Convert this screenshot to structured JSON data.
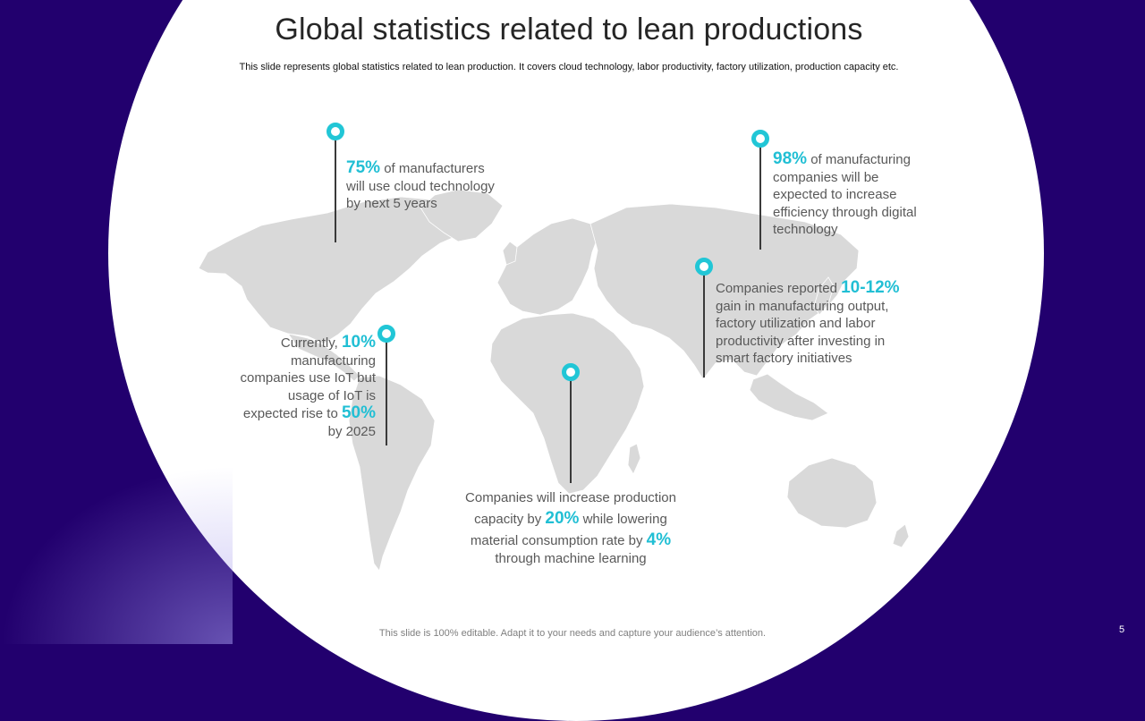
{
  "title": "Global statistics related to lean productions",
  "subtitle": "This slide represents global statistics related to lean production. It covers cloud technology, labor productivity, factory utilization, production capacity etc.",
  "callouts": {
    "cloud": {
      "highlight": "75%",
      "line1": " of manufacturers",
      "line2": "will use cloud technology",
      "line3": "by next  5 years"
    },
    "iot": {
      "line1a": "Currently, ",
      "highlight1": "10%",
      "line2": "manufacturing",
      "line3": "companies use IoT but",
      "line4": "usage of IoT is",
      "line5a": "expected rise to ",
      "highlight2": "50%",
      "line6": "by 2025"
    },
    "digital": {
      "highlight": "98%",
      "line1": "  of manufacturing",
      "line2": "companies  will be",
      "line3": "expected to increase",
      "line4": "efficiency through digital",
      "line5": "technology"
    },
    "smart": {
      "line1a": "Companies reported ",
      "highlight": "10-12%",
      "line2": "gain in manufacturing  output,",
      "line3": "factory utilization and labor",
      "line4": "productivity after investing in",
      "line5": "smart factory initiatives"
    },
    "capacity": {
      "line1": "Companies will increase production",
      "line2a": "capacity by ",
      "highlight1": "20%",
      "line2b": " while lowering",
      "line3a": "material consumption rate by ",
      "highlight2": "4%",
      "line4": "through machine learning"
    }
  },
  "footer": "This slide is 100% editable. Adapt it to your needs and capture your audience’s attention.",
  "page_number": "5",
  "colors": {
    "background": "#22006e",
    "accent": "#21c6d6",
    "map": "#d9d9d9",
    "body_text": "#595959"
  }
}
